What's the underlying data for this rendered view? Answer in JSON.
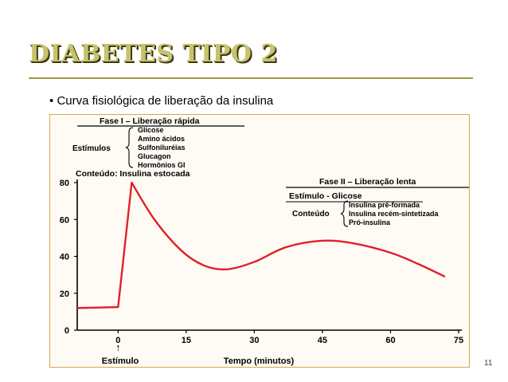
{
  "slide": {
    "title": "DIABETES TIPO 2",
    "bullet_marker": "•",
    "bullet_text": "Curva fisiológica de liberação da insulina",
    "page_number": "11"
  },
  "figure": {
    "phase1": {
      "header": "Fase I – Liberação rápida",
      "stimuli_label": "Estímulos",
      "stimuli": [
        "Glicose",
        "Amino ácidos",
        "Sulfoniluréias",
        "Glucagon",
        "Hormônios GI"
      ],
      "content_line": "Conteúdo: Insulina estocada"
    },
    "phase2": {
      "header": "Fase II – Liberação lenta",
      "stimulus_line": "Estímulo - Glicose",
      "content_label": "Conteúdo",
      "content_items": [
        "Insulina pré-formada",
        "Insulina recém-sintetizada",
        "Pró-insulina"
      ]
    },
    "stimulus_label": "Estímulo",
    "stimulus_arrow": "↑"
  },
  "chart_data": {
    "type": "line",
    "xlabel": "Tempo (minutos)",
    "ylabel": "",
    "xlim": [
      -9,
      75
    ],
    "ylim": [
      0,
      80
    ],
    "xticks": [
      0,
      15,
      30,
      45,
      60,
      75
    ],
    "yticks": [
      0,
      20,
      40,
      60,
      80
    ],
    "grid": false,
    "line_color": "#e0202c",
    "series": [
      {
        "x": [
          -9,
          0,
          3,
          8,
          14,
          19,
          24,
          30,
          37,
          45,
          52,
          60,
          66,
          72
        ],
        "y": [
          12,
          12.5,
          80,
          60,
          43,
          35,
          33,
          37,
          45,
          48.5,
          47,
          42,
          36,
          29
        ]
      }
    ]
  }
}
